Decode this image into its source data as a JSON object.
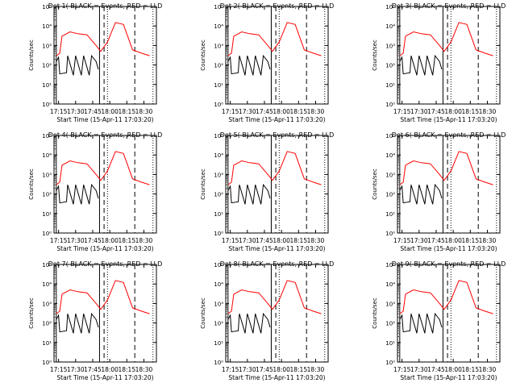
{
  "figure": {
    "start_time_label": "Start Time (15-Apr-11 17:03:20)",
    "ylabel": "Counts/sec",
    "x_ticks": [
      "17:15",
      "17:30",
      "17:45",
      "18:00",
      "18:15",
      "18:30"
    ],
    "y_ticks": [
      "10⁰",
      "10¹",
      "10²",
      "10³",
      "10⁴",
      "10⁵"
    ],
    "colors": {
      "events": "#000000",
      "lld": "#ff0000"
    }
  },
  "chart_data": [
    {
      "type": "line",
      "title": "Det 1(-BLACK = Events, RED = LLD",
      "xlabel": "Start Time (15-Apr-11 17:03:20)",
      "ylabel": "Counts/sec",
      "yscale": "log",
      "ylim": [
        1,
        100000
      ],
      "series": [
        {
          "name": "Events",
          "color": "#000000",
          "x": [
            "17:13",
            "17:15",
            "17:16",
            "17:22",
            "17:23",
            "17:28",
            "17:30",
            "17:35",
            "17:37",
            "17:42",
            "17:44",
            "17:48",
            "17:50"
          ],
          "values": [
            150,
            250,
            35,
            40,
            300,
            30,
            300,
            30,
            300,
            30,
            300,
            150,
            60
          ]
        },
        {
          "name": "LLD",
          "color": "#ff0000",
          "x": [
            "17:13",
            "17:16",
            "17:18",
            "17:25",
            "17:32",
            "17:40",
            "17:48",
            "17:52",
            "17:58",
            "18:05",
            "18:12",
            "18:20",
            "18:28",
            "18:35"
          ],
          "values": [
            300,
            400,
            3000,
            5000,
            4000,
            3500,
            1000,
            500,
            1500,
            15000,
            12000,
            600,
            400,
            300
          ]
        }
      ]
    },
    {
      "type": "line",
      "title": "Det 2(-BLACK = Events, RED = LLD",
      "xlabel": "Start Time (15-Apr-11 17:03:20)",
      "ylabel": "Counts/sec",
      "yscale": "log",
      "ylim": [
        1,
        100000
      ],
      "series": [
        {
          "name": "Events",
          "color": "#000000",
          "x": [
            "17:13",
            "17:15",
            "17:16",
            "17:22",
            "17:23",
            "17:28",
            "17:30",
            "17:35",
            "17:37",
            "17:42",
            "17:44",
            "17:48",
            "17:50"
          ],
          "values": [
            150,
            250,
            35,
            40,
            300,
            30,
            300,
            30,
            300,
            30,
            300,
            150,
            60
          ]
        },
        {
          "name": "LLD",
          "color": "#ff0000",
          "x": [
            "17:13",
            "17:16",
            "17:18",
            "17:25",
            "17:32",
            "17:40",
            "17:48",
            "17:52",
            "17:58",
            "18:05",
            "18:12",
            "18:20",
            "18:28",
            "18:35"
          ],
          "values": [
            300,
            400,
            3000,
            5000,
            4000,
            3500,
            1000,
            500,
            1500,
            15000,
            12000,
            600,
            400,
            300
          ]
        }
      ]
    },
    {
      "type": "line",
      "title": "Det 3(-BLACK = Events, RED = LLD",
      "xlabel": "Start Time (15-Apr-11 17:03:20)",
      "ylabel": "Counts/sec",
      "yscale": "log",
      "ylim": [
        1,
        100000
      ],
      "series": [
        {
          "name": "Events",
          "color": "#000000",
          "x": [
            "17:13",
            "17:15",
            "17:16",
            "17:22",
            "17:23",
            "17:28",
            "17:30",
            "17:35",
            "17:37",
            "17:42",
            "17:44",
            "17:48",
            "17:50"
          ],
          "values": [
            150,
            250,
            35,
            40,
            300,
            30,
            300,
            30,
            300,
            30,
            300,
            150,
            60
          ]
        },
        {
          "name": "LLD",
          "color": "#ff0000",
          "x": [
            "17:13",
            "17:16",
            "17:18",
            "17:25",
            "17:32",
            "17:40",
            "17:48",
            "17:52",
            "17:58",
            "18:05",
            "18:12",
            "18:20",
            "18:28",
            "18:35"
          ],
          "values": [
            300,
            400,
            3000,
            5000,
            4000,
            3500,
            1000,
            500,
            1500,
            15000,
            12000,
            600,
            400,
            300
          ]
        }
      ]
    },
    {
      "type": "line",
      "title": "Det 4(-BLACK = Events, RED = LLD",
      "xlabel": "Start Time (15-Apr-11 17:03:20)",
      "ylabel": "Counts/sec",
      "yscale": "log",
      "ylim": [
        1,
        100000
      ],
      "series": [
        {
          "name": "Events",
          "color": "#000000",
          "x": [
            "17:13",
            "17:15",
            "17:16",
            "17:22",
            "17:23",
            "17:28",
            "17:30",
            "17:35",
            "17:37",
            "17:42",
            "17:44",
            "17:48",
            "17:50"
          ],
          "values": [
            150,
            250,
            35,
            40,
            300,
            30,
            300,
            30,
            300,
            30,
            300,
            150,
            60
          ]
        },
        {
          "name": "LLD",
          "color": "#ff0000",
          "x": [
            "17:13",
            "17:16",
            "17:18",
            "17:25",
            "17:32",
            "17:40",
            "17:48",
            "17:52",
            "17:58",
            "18:05",
            "18:12",
            "18:20",
            "18:28",
            "18:35"
          ],
          "values": [
            300,
            400,
            3000,
            5000,
            4000,
            3500,
            1000,
            500,
            1500,
            15000,
            12000,
            600,
            400,
            300
          ]
        }
      ]
    },
    {
      "type": "line",
      "title": "Det 5(-BLACK = Events, RED = LLD",
      "xlabel": "Start Time (15-Apr-11 17:03:20)",
      "ylabel": "Counts/sec",
      "yscale": "log",
      "ylim": [
        1,
        100000
      ],
      "series": [
        {
          "name": "Events",
          "color": "#000000",
          "x": [
            "17:13",
            "17:15",
            "17:16",
            "17:22",
            "17:23",
            "17:28",
            "17:30",
            "17:35",
            "17:37",
            "17:42",
            "17:44",
            "17:48",
            "17:50"
          ],
          "values": [
            150,
            250,
            35,
            40,
            300,
            30,
            300,
            30,
            300,
            30,
            300,
            150,
            60
          ]
        },
        {
          "name": "LLD",
          "color": "#ff0000",
          "x": [
            "17:13",
            "17:16",
            "17:18",
            "17:25",
            "17:32",
            "17:40",
            "17:48",
            "17:52",
            "17:58",
            "18:05",
            "18:12",
            "18:20",
            "18:28",
            "18:35"
          ],
          "values": [
            300,
            400,
            3000,
            5000,
            4000,
            3500,
            1000,
            500,
            1500,
            15000,
            12000,
            600,
            400,
            300
          ]
        }
      ]
    },
    {
      "type": "line",
      "title": "Det 6(-BLACK = Events, RED = LLD",
      "xlabel": "Start Time (15-Apr-11 17:03:20)",
      "ylabel": "Counts/sec",
      "yscale": "log",
      "ylim": [
        1,
        100000
      ],
      "series": [
        {
          "name": "Events",
          "color": "#000000",
          "x": [
            "17:13",
            "17:15",
            "17:16",
            "17:22",
            "17:23",
            "17:28",
            "17:30",
            "17:35",
            "17:37",
            "17:42",
            "17:44",
            "17:48",
            "17:50"
          ],
          "values": [
            150,
            250,
            35,
            40,
            300,
            30,
            300,
            30,
            300,
            30,
            300,
            150,
            60
          ]
        },
        {
          "name": "LLD",
          "color": "#ff0000",
          "x": [
            "17:13",
            "17:16",
            "17:18",
            "17:25",
            "17:32",
            "17:40",
            "17:48",
            "17:52",
            "17:58",
            "18:05",
            "18:12",
            "18:20",
            "18:28",
            "18:35"
          ],
          "values": [
            300,
            400,
            3000,
            5000,
            4000,
            3500,
            1000,
            500,
            1500,
            15000,
            12000,
            600,
            400,
            300
          ]
        }
      ]
    },
    {
      "type": "line",
      "title": "Det 7(-BLACK = Events, RED = LLD",
      "xlabel": "Start Time (15-Apr-11 17:03:20)",
      "ylabel": "Counts/sec",
      "yscale": "log",
      "ylim": [
        1,
        100000
      ],
      "series": [
        {
          "name": "Events",
          "color": "#000000",
          "x": [
            "17:13",
            "17:15",
            "17:16",
            "17:22",
            "17:23",
            "17:28",
            "17:30",
            "17:35",
            "17:37",
            "17:42",
            "17:44",
            "17:48",
            "17:50"
          ],
          "values": [
            150,
            250,
            35,
            40,
            300,
            30,
            300,
            30,
            300,
            30,
            300,
            150,
            60
          ]
        },
        {
          "name": "LLD",
          "color": "#ff0000",
          "x": [
            "17:13",
            "17:16",
            "17:18",
            "17:25",
            "17:32",
            "17:40",
            "17:48",
            "17:52",
            "17:58",
            "18:05",
            "18:12",
            "18:20",
            "18:28",
            "18:35"
          ],
          "values": [
            300,
            400,
            3000,
            5000,
            4000,
            3500,
            1000,
            500,
            1500,
            15000,
            12000,
            600,
            400,
            300
          ]
        }
      ]
    },
    {
      "type": "line",
      "title": "Det 8(-BLACK = Events, RED = LLD",
      "xlabel": "Start Time (15-Apr-11 17:03:20)",
      "ylabel": "Counts/sec",
      "yscale": "log",
      "ylim": [
        1,
        100000
      ],
      "series": [
        {
          "name": "Events",
          "color": "#000000",
          "x": [
            "17:13",
            "17:15",
            "17:16",
            "17:22",
            "17:23",
            "17:28",
            "17:30",
            "17:35",
            "17:37",
            "17:42",
            "17:44",
            "17:48",
            "17:50"
          ],
          "values": [
            150,
            250,
            35,
            40,
            300,
            30,
            300,
            30,
            300,
            30,
            300,
            150,
            60
          ]
        },
        {
          "name": "LLD",
          "color": "#ff0000",
          "x": [
            "17:13",
            "17:16",
            "17:18",
            "17:25",
            "17:32",
            "17:40",
            "17:48",
            "17:52",
            "17:58",
            "18:05",
            "18:12",
            "18:20",
            "18:28",
            "18:35"
          ],
          "values": [
            300,
            400,
            3000,
            5000,
            4000,
            3500,
            1000,
            500,
            1500,
            15000,
            12000,
            600,
            400,
            300
          ]
        }
      ]
    },
    {
      "type": "line",
      "title": "Det 9(-BLACK = Events, RED = LLD",
      "xlabel": "Start Time (15-Apr-11 17:03:20)",
      "ylabel": "Counts/sec",
      "yscale": "log",
      "ylim": [
        1,
        100000
      ],
      "series": [
        {
          "name": "Events",
          "color": "#000000",
          "x": [
            "17:13",
            "17:15",
            "17:16",
            "17:22",
            "17:23",
            "17:28",
            "17:30",
            "17:35",
            "17:37",
            "17:42",
            "17:44",
            "17:48",
            "17:50"
          ],
          "values": [
            150,
            250,
            35,
            40,
            300,
            30,
            300,
            30,
            300,
            30,
            300,
            150,
            60
          ]
        },
        {
          "name": "LLD",
          "color": "#ff0000",
          "x": [
            "17:13",
            "17:16",
            "17:18",
            "17:25",
            "17:32",
            "17:40",
            "17:48",
            "17:52",
            "17:58",
            "18:05",
            "18:12",
            "18:20",
            "18:28",
            "18:35"
          ],
          "values": [
            300,
            400,
            3000,
            5000,
            4000,
            3500,
            1000,
            500,
            1500,
            15000,
            12000,
            600,
            400,
            300
          ]
        }
      ]
    }
  ]
}
